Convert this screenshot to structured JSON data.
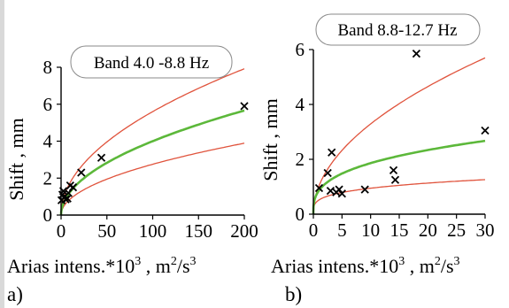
{
  "colors": {
    "fit": "#5cb83a",
    "bound": "#e0533c",
    "marker": "#000000",
    "axis": "#000000"
  },
  "chart_data": [
    {
      "type": "scatter",
      "panel_label": "a)",
      "band_label": "Band 4.0 -8.8 Hz",
      "xlabel_main": "Arias intens.*10",
      "xlabel_exp": "3",
      "xlabel_unit_pre": " , m",
      "xlabel_unit_exp1": "2",
      "xlabel_unit_mid": "/s",
      "xlabel_unit_exp2": "3",
      "ylabel": "Shift , mm",
      "xlim": [
        0,
        200
      ],
      "ylim": [
        0,
        8
      ],
      "xticks": [
        0,
        50,
        100,
        150,
        200
      ],
      "yticks": [
        0,
        2,
        4,
        6,
        8
      ],
      "points": [
        {
          "x": 0.5,
          "y": 0.8
        },
        {
          "x": 1.5,
          "y": 1.1
        },
        {
          "x": 2.5,
          "y": 1.3
        },
        {
          "x": 4,
          "y": 1.0
        },
        {
          "x": 5,
          "y": 0.85
        },
        {
          "x": 7,
          "y": 0.9
        },
        {
          "x": 8,
          "y": 1.2
        },
        {
          "x": 10,
          "y": 1.6
        },
        {
          "x": 13,
          "y": 1.5
        },
        {
          "x": 22,
          "y": 2.3
        },
        {
          "x": 44,
          "y": 3.1
        },
        {
          "x": 200,
          "y": 5.9
        }
      ],
      "fit_curve": {
        "a": 0.4,
        "b": 0.5
      },
      "upper_curve": {
        "a": 0.56,
        "b": 0.5
      },
      "lower_curve": {
        "a": 0.275,
        "b": 0.5
      }
    },
    {
      "type": "scatter",
      "panel_label": "b)",
      "band_label": "Band 8.8-12.7 Hz",
      "xlabel_main": "Arias intens.*10",
      "xlabel_exp": "3",
      "xlabel_unit_pre": " , m",
      "xlabel_unit_exp1": "2",
      "xlabel_unit_mid": "/s",
      "xlabel_unit_exp2": "3",
      "ylabel": "Shift , mm",
      "xlim": [
        0,
        30
      ],
      "ylim": [
        0,
        6
      ],
      "xticks": [
        0,
        5,
        10,
        15,
        20,
        25,
        30
      ],
      "yticks": [
        0,
        2,
        4,
        6
      ],
      "points": [
        {
          "x": 1,
          "y": 0.95
        },
        {
          "x": 2.5,
          "y": 1.5
        },
        {
          "x": 3,
          "y": 0.85
        },
        {
          "x": 3.2,
          "y": 2.25
        },
        {
          "x": 4,
          "y": 0.8
        },
        {
          "x": 4.5,
          "y": 0.9
        },
        {
          "x": 5,
          "y": 0.75
        },
        {
          "x": 9,
          "y": 0.9
        },
        {
          "x": 14,
          "y": 1.6
        },
        {
          "x": 14.3,
          "y": 1.25
        },
        {
          "x": 18,
          "y": 5.85
        },
        {
          "x": 30,
          "y": 3.05
        }
      ],
      "fit_curve": {
        "a": 0.87,
        "b": 0.33
      },
      "upper_curve": {
        "a": 1.04,
        "b": 0.5
      },
      "lower_curve": {
        "a": 0.52,
        "b": 0.26
      }
    }
  ]
}
